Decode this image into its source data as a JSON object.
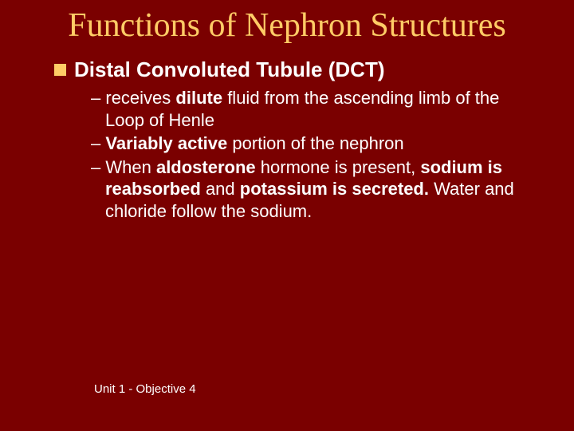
{
  "colors": {
    "background": "#7a0000",
    "title": "#ffcc66",
    "bullet": "#ffcc66",
    "text": "#ffffff"
  },
  "typography": {
    "title_font": "Times New Roman",
    "body_font": "Verdana",
    "title_size_pt": 42,
    "heading_size_pt": 26,
    "body_size_pt": 22,
    "footer_size_pt": 15
  },
  "title": "Functions of Nephron Structures",
  "heading": "Distal Convoluted Tubule (DCT)",
  "items": [
    {
      "dash": "–",
      "pre": " receives ",
      "b1": "dilute",
      "mid1": " fluid from the ascending limb of the Loop of Henle",
      "b2": "",
      "mid2": "",
      "b3": "",
      "post": ""
    },
    {
      "dash": "–",
      "pre": " ",
      "b1": "Variably active",
      "mid1": " portion of the nephron",
      "b2": "",
      "mid2": "",
      "b3": "",
      "post": ""
    },
    {
      "dash": "–",
      "pre": " When ",
      "b1": "aldosterone",
      "mid1": " hormone is present, ",
      "b2": "sodium is reabsorbed",
      "mid2": " and ",
      "b3": "potassium is secreted.",
      "post": " Water and chloride follow the sodium."
    }
  ],
  "footer": "Unit 1 - Objective 4"
}
